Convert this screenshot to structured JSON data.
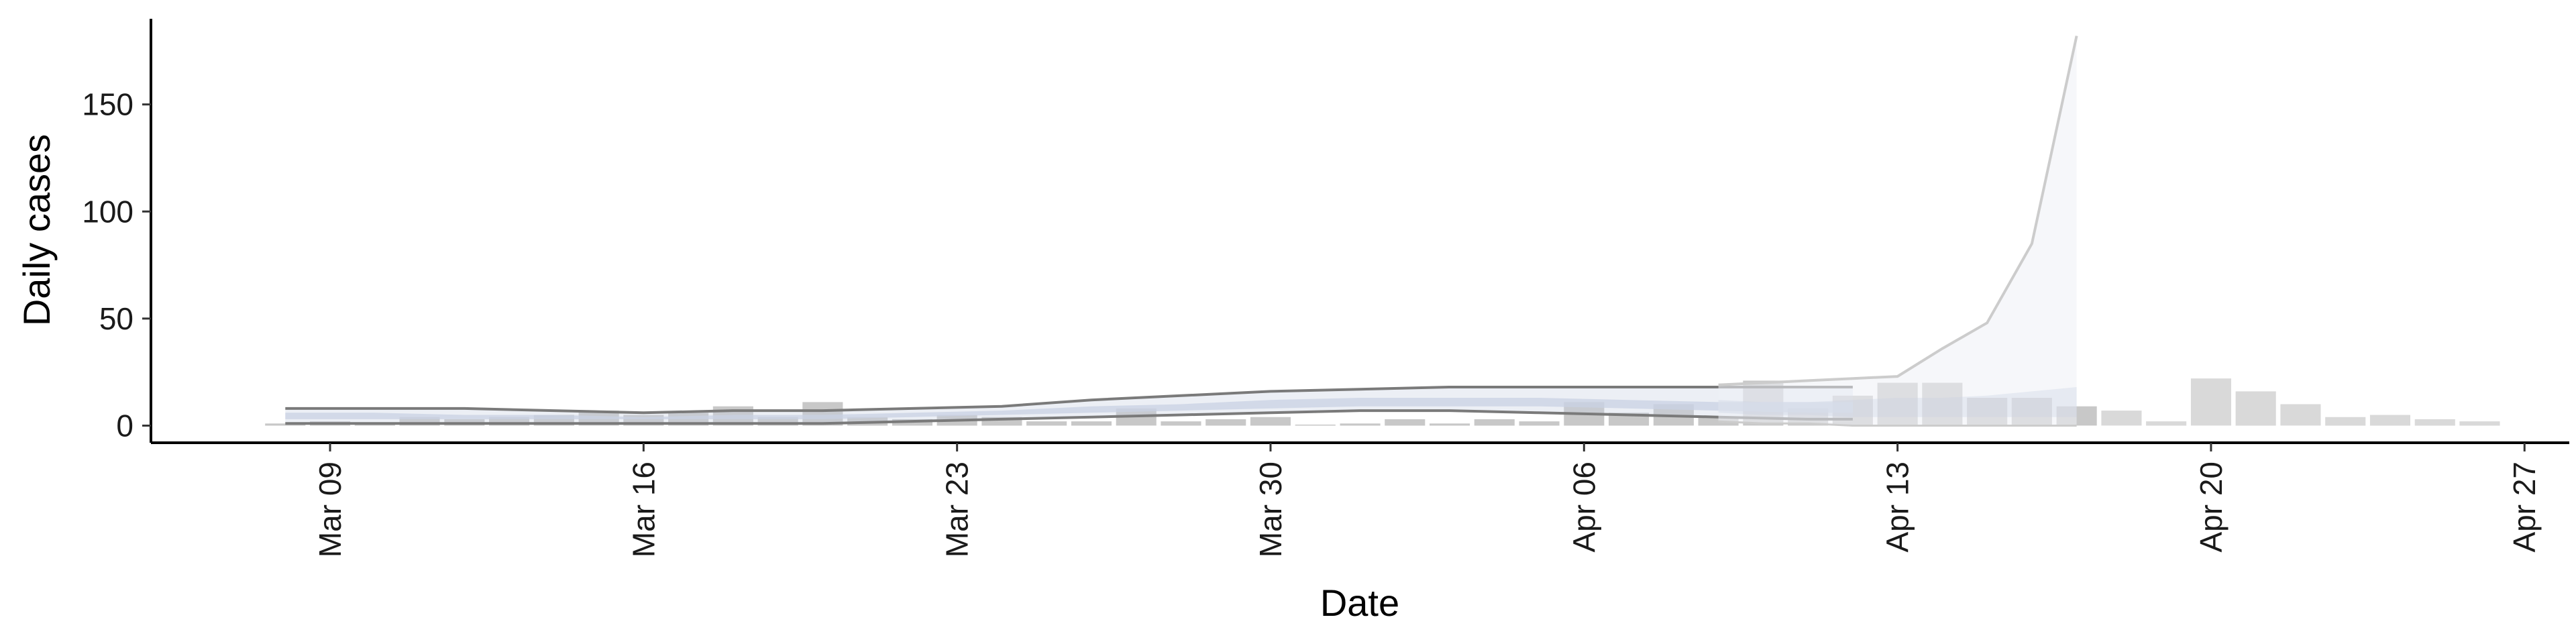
{
  "chart_data": {
    "type": "bar",
    "xlabel": "Date",
    "ylabel": "Daily cases",
    "ylim": [
      -8,
      190
    ],
    "xlim": [
      "2020-03-05",
      "2020-04-28"
    ],
    "yticks": [
      0,
      50,
      100,
      150
    ],
    "xticks": [
      "Mar 09",
      "Mar 16",
      "Mar 23",
      "Mar 30",
      "Apr 06",
      "Apr 13",
      "Apr 20",
      "Apr 27"
    ],
    "xtick_dates": [
      "2020-03-09",
      "2020-03-16",
      "2020-03-23",
      "2020-03-30",
      "2020-04-06",
      "2020-04-13",
      "2020-04-20",
      "2020-04-27"
    ],
    "grid": false,
    "legend": "none",
    "colors": {
      "bars": "#c8c8c8",
      "bars_late": "#d9d9d9",
      "band_line": "#7a7a7a",
      "band_fill": "#c9d2e3",
      "forecast_line": "#cccccc",
      "forecast_fill": "#eef0f5"
    },
    "bars": {
      "dates": [
        "2020-03-08",
        "2020-03-09",
        "2020-03-10",
        "2020-03-11",
        "2020-03-12",
        "2020-03-13",
        "2020-03-14",
        "2020-03-15",
        "2020-03-16",
        "2020-03-17",
        "2020-03-18",
        "2020-03-19",
        "2020-03-20",
        "2020-03-21",
        "2020-03-22",
        "2020-03-23",
        "2020-03-24",
        "2020-03-25",
        "2020-03-26",
        "2020-03-27",
        "2020-03-28",
        "2020-03-29",
        "2020-03-30",
        "2020-03-31",
        "2020-04-01",
        "2020-04-02",
        "2020-04-03",
        "2020-04-04",
        "2020-04-05",
        "2020-04-06",
        "2020-04-07",
        "2020-04-08",
        "2020-04-09",
        "2020-04-10",
        "2020-04-11",
        "2020-04-12",
        "2020-04-13",
        "2020-04-14",
        "2020-04-15",
        "2020-04-16",
        "2020-04-17",
        "2020-04-18",
        "2020-04-19",
        "2020-04-20",
        "2020-04-21",
        "2020-04-22",
        "2020-04-23",
        "2020-04-24",
        "2020-04-25",
        "2020-04-26"
      ],
      "values": [
        1,
        2,
        1,
        4,
        3,
        4,
        5,
        7,
        5,
        6,
        9,
        4,
        11,
        4,
        3,
        5,
        4,
        2,
        2,
        8,
        2,
        3,
        4,
        0,
        1,
        3,
        1,
        3,
        2,
        11,
        6,
        10,
        4,
        21,
        8,
        14,
        20,
        20,
        13,
        13,
        9,
        7,
        2,
        22,
        16,
        10,
        4,
        5,
        3,
        2
      ]
    },
    "band": {
      "dates": [
        "2020-03-08",
        "2020-03-10",
        "2020-03-12",
        "2020-03-14",
        "2020-03-16",
        "2020-03-18",
        "2020-03-20",
        "2020-03-22",
        "2020-03-24",
        "2020-03-26",
        "2020-03-28",
        "2020-03-30",
        "2020-04-01",
        "2020-04-03",
        "2020-04-05",
        "2020-04-07",
        "2020-04-09",
        "2020-04-11",
        "2020-04-12"
      ],
      "upper": [
        8,
        8,
        8,
        7,
        6,
        7,
        7,
        8,
        9,
        12,
        14,
        16,
        17,
        18,
        18,
        18,
        18,
        18,
        18
      ],
      "lower": [
        1,
        1,
        1,
        1,
        1,
        1,
        1,
        2,
        3,
        4,
        5,
        6,
        7,
        7,
        6,
        5,
        4,
        3,
        3
      ],
      "mid_upper": [
        6,
        6,
        5,
        5,
        4,
        5,
        5,
        6,
        7,
        9,
        10,
        12,
        13,
        13,
        13,
        12,
        11,
        11,
        11
      ],
      "mid_lower": [
        3,
        3,
        3,
        3,
        3,
        3,
        3,
        4,
        5,
        6,
        7,
        8,
        9,
        9,
        9,
        8,
        7,
        6,
        6
      ]
    },
    "forecast": {
      "dates": [
        "2020-04-09",
        "2020-04-10",
        "2020-04-11",
        "2020-04-12",
        "2020-04-13",
        "2020-04-14",
        "2020-04-15",
        "2020-04-16",
        "2020-04-17"
      ],
      "upper": [
        19,
        20,
        21,
        22,
        23,
        36,
        48,
        85,
        182
      ],
      "lower": [
        2,
        1,
        1,
        0,
        0,
        0,
        0,
        0,
        0
      ],
      "mid_upper": [
        12,
        11,
        11,
        12,
        13,
        13,
        14,
        16,
        18
      ],
      "mid_lower": [
        6,
        5,
        5,
        4,
        4,
        4,
        4,
        4,
        4
      ]
    }
  }
}
